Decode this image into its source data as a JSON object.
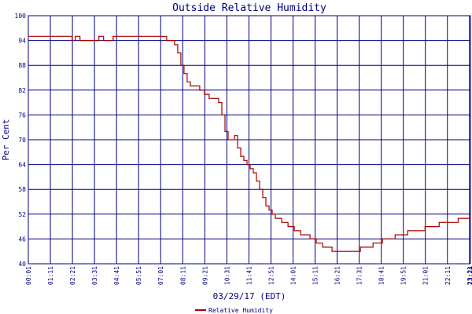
{
  "chart_data": {
    "type": "line",
    "title": "Outside Relative Humidity",
    "xlabel": "03/29/17 (EDT)",
    "ylabel": "Per Cent",
    "ylim": [
      40,
      100
    ],
    "yticks": [
      "40",
      "46",
      "52",
      "58",
      "64",
      "70",
      "76",
      "82",
      "88",
      "94",
      "100"
    ],
    "xticks": [
      "00:01",
      "01:11",
      "02:21",
      "03:31",
      "04:41",
      "05:51",
      "07:01",
      "08:11",
      "09:21",
      "10:31",
      "11:41",
      "12:51",
      "14:01",
      "15:11",
      "16:21",
      "17:31",
      "18:41",
      "19:51",
      "21:01",
      "22:11",
      "23:21",
      "23:24"
    ],
    "xlim": [
      "00:01",
      "23:24"
    ],
    "grid": true,
    "legend": "bottom-center",
    "series": [
      {
        "name": "Relative Humidity",
        "color": "#aa0000",
        "x": [
          "00:01",
          "01:11",
          "01:20",
          "01:30",
          "01:40",
          "01:50",
          "02:00",
          "02:20",
          "02:30",
          "02:45",
          "03:00",
          "03:15",
          "03:30",
          "03:45",
          "04:00",
          "04:15",
          "04:30",
          "04:45",
          "05:00",
          "05:30",
          "06:00",
          "06:30",
          "07:01",
          "07:20",
          "07:35",
          "07:45",
          "07:55",
          "08:05",
          "08:15",
          "08:25",
          "08:35",
          "08:50",
          "09:05",
          "09:20",
          "09:35",
          "09:50",
          "10:05",
          "10:15",
          "10:25",
          "10:35",
          "10:45",
          "10:55",
          "11:05",
          "11:15",
          "11:25",
          "11:35",
          "11:45",
          "11:55",
          "12:05",
          "12:15",
          "12:25",
          "12:35",
          "12:45",
          "12:55",
          "13:05",
          "13:15",
          "13:25",
          "13:35",
          "13:45",
          "13:55",
          "14:05",
          "14:15",
          "14:25",
          "14:35",
          "14:45",
          "14:55",
          "15:05",
          "15:15",
          "15:25",
          "15:35",
          "15:45",
          "15:55",
          "16:05",
          "16:15",
          "16:25",
          "16:35",
          "16:45",
          "16:55",
          "17:05",
          "17:15",
          "17:25",
          "17:35",
          "17:45",
          "17:55",
          "18:05",
          "18:15",
          "18:25",
          "18:35",
          "18:45",
          "18:55",
          "19:05",
          "19:15",
          "19:25",
          "19:35",
          "19:45",
          "19:55",
          "20:05",
          "20:15",
          "20:30",
          "20:45",
          "21:00",
          "21:15",
          "21:30",
          "21:45",
          "22:00",
          "22:15",
          "22:30",
          "22:45",
          "23:00",
          "23:10",
          "23:20",
          "23:24"
        ],
        "values": [
          95,
          95,
          95,
          95,
          95,
          95,
          95,
          94,
          95,
          94,
          94,
          94,
          94,
          95,
          94,
          94,
          95,
          95,
          95,
          95,
          95,
          95,
          95,
          94,
          94,
          93,
          91,
          88,
          86,
          84,
          83,
          83,
          82,
          81,
          80,
          80,
          79,
          76,
          72,
          70,
          70,
          71,
          68,
          66,
          65,
          64,
          63,
          62,
          60,
          58,
          56,
          54,
          53,
          52,
          51,
          51,
          50,
          50,
          49,
          49,
          48,
          48,
          47,
          47,
          47,
          46,
          46,
          45,
          45,
          44,
          44,
          44,
          43,
          43,
          43,
          43,
          43,
          43,
          43,
          43,
          43,
          44,
          44,
          44,
          44,
          45,
          45,
          45,
          46,
          46,
          46,
          46,
          47,
          47,
          47,
          47,
          48,
          48,
          48,
          48,
          49,
          49,
          49,
          50,
          50,
          50,
          50,
          51,
          51,
          51,
          51,
          51
        ]
      }
    ]
  }
}
